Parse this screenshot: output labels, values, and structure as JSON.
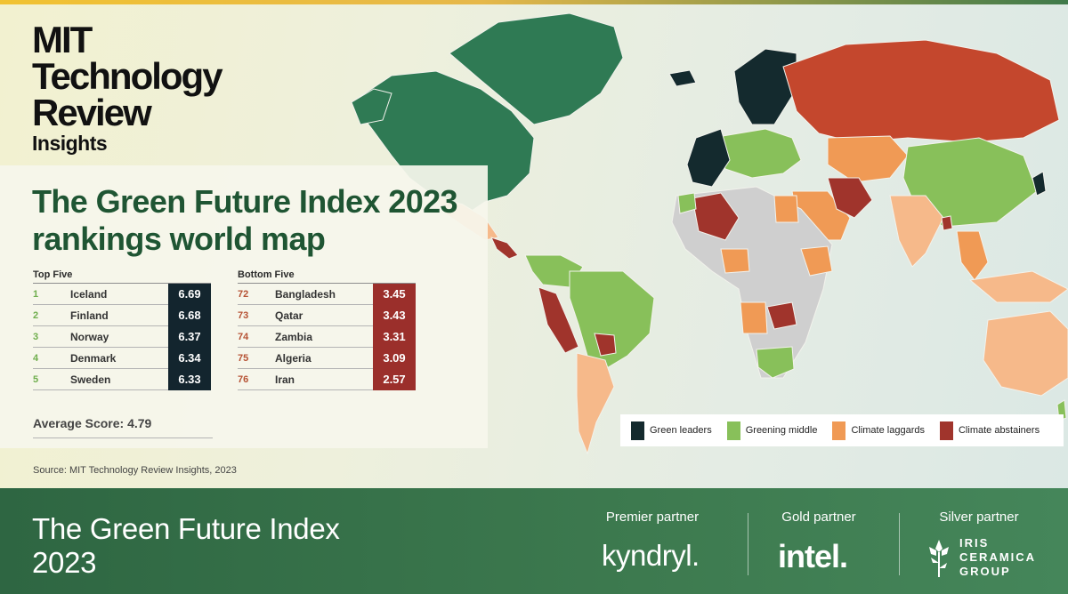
{
  "logo": {
    "line1": "MIT",
    "line2": "Technology",
    "line3": "Review",
    "line4": "Insights"
  },
  "title": "The Green Future Index 2023 rankings world map",
  "top_five": {
    "header": "Top Five",
    "rows": [
      {
        "rank": "1",
        "country": "Iceland",
        "score": "6.69"
      },
      {
        "rank": "2",
        "country": "Finland",
        "score": "6.68"
      },
      {
        "rank": "3",
        "country": "Norway",
        "score": "6.37"
      },
      {
        "rank": "4",
        "country": "Denmark",
        "score": "6.34"
      },
      {
        "rank": "5",
        "country": "Sweden",
        "score": "6.33"
      }
    ]
  },
  "bottom_five": {
    "header": "Bottom Five",
    "rows": [
      {
        "rank": "72",
        "country": "Bangladesh",
        "score": "3.45"
      },
      {
        "rank": "73",
        "country": "Qatar",
        "score": "3.43"
      },
      {
        "rank": "74",
        "country": "Zambia",
        "score": "3.31"
      },
      {
        "rank": "75",
        "country": "Algeria",
        "score": "3.09"
      },
      {
        "rank": "76",
        "country": "Iran",
        "score": "2.57"
      }
    ]
  },
  "average": "Average Score: 4.79",
  "source": "Source: MIT Technology Review Insights, 2023",
  "legend": [
    {
      "label": "Green leaders",
      "color": "#142a2e"
    },
    {
      "label": "Greening middle",
      "color": "#88c05a"
    },
    {
      "label": "Climate laggards",
      "color": "#f09a55"
    },
    {
      "label": "Climate abstainers",
      "color": "#a0342c"
    }
  ],
  "colors": {
    "greenland_na": "#2f7a54",
    "leaders": "#142a2e",
    "middle": "#88c05a",
    "laggards": "#f09a55",
    "laggards_light": "#f6b98a",
    "abstainers": "#a0342c",
    "russia": "#c4472d",
    "nodata": "#cfcfcf"
  },
  "footer": {
    "title_line1": "The Green Future Index",
    "title_line2": "2023",
    "premier_label": "Premier partner",
    "premier_name": "kyndryl.",
    "gold_label": "Gold partner",
    "gold_name": "intel.",
    "silver_label": "Silver partner",
    "silver_line1": "IRIS",
    "silver_line2": "CERAMICA",
    "silver_line3": "GROUP"
  }
}
